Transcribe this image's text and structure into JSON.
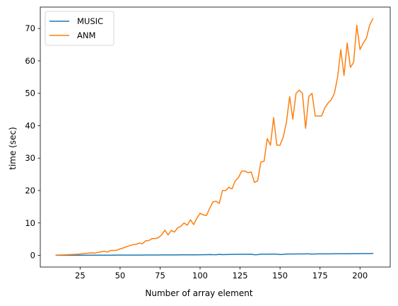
{
  "chart_data": {
    "type": "line",
    "title": "",
    "xlabel": "Number of array element",
    "ylabel": "time (sec)",
    "xlim": [
      0.1,
      218.9
    ],
    "ylim": [
      -3.6,
      76.6
    ],
    "xticks": [
      25,
      50,
      75,
      100,
      125,
      150,
      175,
      200
    ],
    "yticks": [
      0,
      10,
      20,
      30,
      40,
      50,
      60,
      70
    ],
    "grid": false,
    "legend_position": "top-left",
    "x": [
      10,
      12,
      14,
      16,
      18,
      20,
      22,
      24,
      26,
      28,
      30,
      32,
      34,
      36,
      38,
      40,
      42,
      44,
      46,
      48,
      50,
      52,
      54,
      56,
      58,
      60,
      62,
      64,
      66,
      68,
      70,
      72,
      74,
      76,
      78,
      80,
      82,
      84,
      86,
      88,
      90,
      92,
      94,
      96,
      98,
      100,
      102,
      104,
      106,
      108,
      110,
      112,
      114,
      116,
      118,
      120,
      122,
      124,
      126,
      128,
      130,
      132,
      134,
      136,
      138,
      140,
      142,
      144,
      146,
      148,
      150,
      152,
      154,
      156,
      158,
      160,
      162,
      164,
      166,
      168,
      170,
      172,
      174,
      176,
      178,
      180,
      182,
      184,
      186,
      188,
      190,
      192,
      194,
      196,
      198,
      200,
      202,
      204,
      206,
      208
    ],
    "series": [
      {
        "name": "MUSIC",
        "color": "#1f77b4",
        "values": [
          0.02,
          0.02,
          0.02,
          0.03,
          0.03,
          0.03,
          0.03,
          0.04,
          0.04,
          0.04,
          0.05,
          0.05,
          0.05,
          0.06,
          0.06,
          0.06,
          0.07,
          0.07,
          0.07,
          0.08,
          0.08,
          0.08,
          0.09,
          0.09,
          0.09,
          0.1,
          0.1,
          0.1,
          0.11,
          0.11,
          0.12,
          0.12,
          0.12,
          0.13,
          0.13,
          0.14,
          0.14,
          0.15,
          0.15,
          0.16,
          0.16,
          0.17,
          0.17,
          0.18,
          0.18,
          0.19,
          0.2,
          0.22,
          0.26,
          0.22,
          0.21,
          0.3,
          0.22,
          0.25,
          0.28,
          0.3,
          0.3,
          0.32,
          0.33,
          0.33,
          0.34,
          0.35,
          0.2,
          0.22,
          0.35,
          0.36,
          0.37,
          0.38,
          0.38,
          0.4,
          0.25,
          0.3,
          0.42,
          0.42,
          0.42,
          0.43,
          0.44,
          0.45,
          0.46,
          0.47,
          0.4,
          0.45,
          0.46,
          0.47,
          0.47,
          0.48,
          0.48,
          0.49,
          0.49,
          0.5,
          0.5,
          0.5,
          0.52,
          0.53,
          0.53,
          0.54,
          0.55,
          0.56,
          0.56,
          0.6
        ]
      },
      {
        "name": "ANM",
        "color": "#ff7f0e",
        "values": [
          0.1,
          0.12,
          0.15,
          0.18,
          0.22,
          0.27,
          0.32,
          0.4,
          0.48,
          0.58,
          0.7,
          0.8,
          0.7,
          0.9,
          1.1,
          1.3,
          1.0,
          1.5,
          1.5,
          1.6,
          2.0,
          2.3,
          2.7,
          3.0,
          3.3,
          3.4,
          3.8,
          3.6,
          4.5,
          4.6,
          5.2,
          5.2,
          5.5,
          6.3,
          7.8,
          6.3,
          7.7,
          7.2,
          8.5,
          9.0,
          10.0,
          9.3,
          11.0,
          9.5,
          11.5,
          13.0,
          12.5,
          12.3,
          14.5,
          16.5,
          16.7,
          16.0,
          20.0,
          20.0,
          21.0,
          20.5,
          23.0,
          24.0,
          26.0,
          26.0,
          25.5,
          25.7,
          22.5,
          23.0,
          28.8,
          29.0,
          36.0,
          34.0,
          42.5,
          34.0,
          34.0,
          36.5,
          41.0,
          49.0,
          42.0,
          50.0,
          51.0,
          50.0,
          39.2,
          49.0,
          50.0,
          43.0,
          43.0,
          43.0,
          45.5,
          47.0,
          48.0,
          50.0,
          55.0,
          63.5,
          55.5,
          65.5,
          58.0,
          59.5,
          71.0,
          63.5,
          65.5,
          67.0,
          71.0,
          73.0
        ]
      }
    ]
  }
}
